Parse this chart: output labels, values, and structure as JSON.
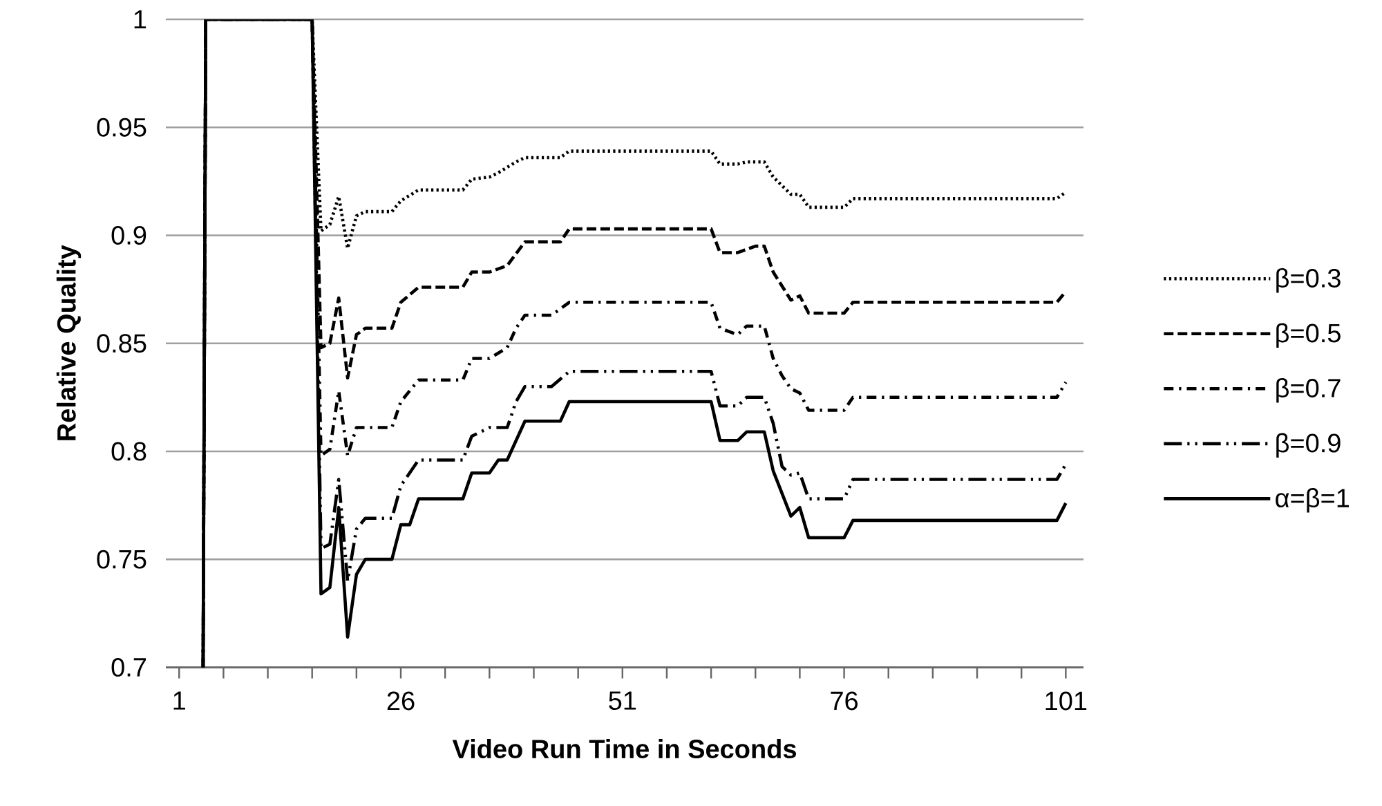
{
  "chart_data": {
    "type": "line",
    "xlabel": "Video Run Time in Seconds",
    "ylabel": "Relative Quality",
    "xlim": [
      -0.5,
      103
    ],
    "ylim": [
      0.7,
      1
    ],
    "xticks": [
      1,
      {
        "value": 6,
        "label": null
      },
      {
        "value": 11,
        "label": null
      },
      {
        "value": 16,
        "label": null
      },
      {
        "value": 21,
        "label": null
      },
      26,
      {
        "value": 31,
        "label": null
      },
      {
        "value": 36,
        "label": null
      },
      {
        "value": 41,
        "label": null
      },
      {
        "value": 46,
        "label": null
      },
      51,
      {
        "value": 56,
        "label": null
      },
      {
        "value": 61,
        "label": null
      },
      {
        "value": 66,
        "label": null
      },
      {
        "value": 71,
        "label": null
      },
      76,
      {
        "value": 81,
        "label": null
      },
      {
        "value": 86,
        "label": null
      },
      {
        "value": 91,
        "label": null
      },
      {
        "value": 96,
        "label": null
      },
      101
    ],
    "yticks": [
      0.7,
      0.75,
      0.8,
      0.85,
      0.9,
      0.95,
      1
    ],
    "grid": "y",
    "legend": "right",
    "series": [
      {
        "name": "β=0.3",
        "color": "#000000",
        "line_style": "dotted",
        "x": [
          3.7,
          4,
          16,
          17,
          18,
          19,
          20,
          21,
          22,
          25,
          26,
          28,
          33,
          34,
          36,
          37,
          39,
          40,
          44,
          45,
          61,
          62,
          64,
          65,
          67,
          68,
          70,
          71,
          72,
          76,
          77,
          100,
          101
        ],
        "values": [
          0.7,
          1,
          1,
          0.902,
          0.905,
          0.918,
          0.894,
          0.909,
          0.911,
          0.911,
          0.916,
          0.921,
          0.921,
          0.926,
          0.927,
          0.929,
          0.934,
          0.936,
          0.936,
          0.939,
          0.939,
          0.933,
          0.933,
          0.934,
          0.934,
          0.927,
          0.919,
          0.919,
          0.913,
          0.913,
          0.917,
          0.917,
          0.92
        ]
      },
      {
        "name": "β=0.5",
        "color": "#000000",
        "line_style": "dashed",
        "x": [
          3.7,
          4,
          16,
          17,
          18,
          19,
          20,
          21,
          22,
          25,
          26,
          28,
          33,
          34,
          36,
          38,
          40,
          44,
          45,
          61,
          62,
          64,
          66,
          67,
          68,
          70,
          71,
          72,
          76,
          77,
          100,
          101
        ],
        "values": [
          0.7,
          1,
          1,
          0.848,
          0.85,
          0.871,
          0.834,
          0.854,
          0.857,
          0.857,
          0.869,
          0.876,
          0.876,
          0.883,
          0.883,
          0.886,
          0.897,
          0.897,
          0.903,
          0.903,
          0.892,
          0.892,
          0.895,
          0.895,
          0.883,
          0.87,
          0.872,
          0.864,
          0.864,
          0.869,
          0.869,
          0.874
        ]
      },
      {
        "name": "β=0.7",
        "color": "#000000",
        "line_style": "dashdot",
        "x": [
          3.7,
          4,
          16,
          17,
          18,
          19,
          20,
          21,
          22,
          25,
          26,
          28,
          33,
          34,
          36,
          38,
          39,
          40,
          43,
          45,
          61,
          62,
          64,
          65,
          67,
          68,
          69,
          70,
          71,
          72,
          76,
          77,
          100,
          101
        ],
        "values": [
          0.7,
          1,
          1,
          0.798,
          0.801,
          0.828,
          0.798,
          0.811,
          0.811,
          0.811,
          0.823,
          0.833,
          0.833,
          0.843,
          0.843,
          0.848,
          0.857,
          0.863,
          0.863,
          0.869,
          0.869,
          0.857,
          0.854,
          0.858,
          0.858,
          0.843,
          0.835,
          0.829,
          0.827,
          0.819,
          0.819,
          0.825,
          0.825,
          0.832
        ]
      },
      {
        "name": "β=0.9",
        "color": "#000000",
        "line_style": "dashdotdot",
        "x": [
          3.7,
          4,
          16,
          17,
          18,
          19,
          20,
          21,
          22,
          25,
          26,
          28,
          33,
          34,
          36,
          38,
          39,
          40,
          43,
          45,
          61,
          62,
          64,
          65,
          67,
          68,
          69,
          70,
          71,
          72,
          76,
          77,
          100,
          101
        ],
        "values": [
          0.7,
          1,
          1,
          0.755,
          0.757,
          0.787,
          0.74,
          0.764,
          0.769,
          0.769,
          0.784,
          0.796,
          0.796,
          0.807,
          0.811,
          0.811,
          0.823,
          0.83,
          0.83,
          0.837,
          0.837,
          0.821,
          0.821,
          0.825,
          0.825,
          0.813,
          0.793,
          0.789,
          0.79,
          0.778,
          0.778,
          0.787,
          0.787,
          0.794
        ]
      },
      {
        "name": "α=β=1",
        "color": "#000000",
        "line_style": "solid",
        "x": [
          3.7,
          4,
          16,
          17,
          18,
          19,
          20,
          21,
          22,
          25,
          26,
          27,
          28,
          33,
          34,
          36,
          37,
          38,
          40,
          44,
          45,
          61,
          62,
          64,
          65,
          67,
          68,
          70,
          71,
          72,
          76,
          77,
          100,
          101
        ],
        "values": [
          0.7,
          1,
          1,
          0.734,
          0.737,
          0.774,
          0.714,
          0.743,
          0.75,
          0.75,
          0.766,
          0.766,
          0.778,
          0.778,
          0.79,
          0.79,
          0.796,
          0.796,
          0.814,
          0.814,
          0.823,
          0.823,
          0.805,
          0.805,
          0.809,
          0.809,
          0.791,
          0.77,
          0.774,
          0.76,
          0.76,
          0.768,
          0.768,
          0.776
        ]
      }
    ]
  }
}
